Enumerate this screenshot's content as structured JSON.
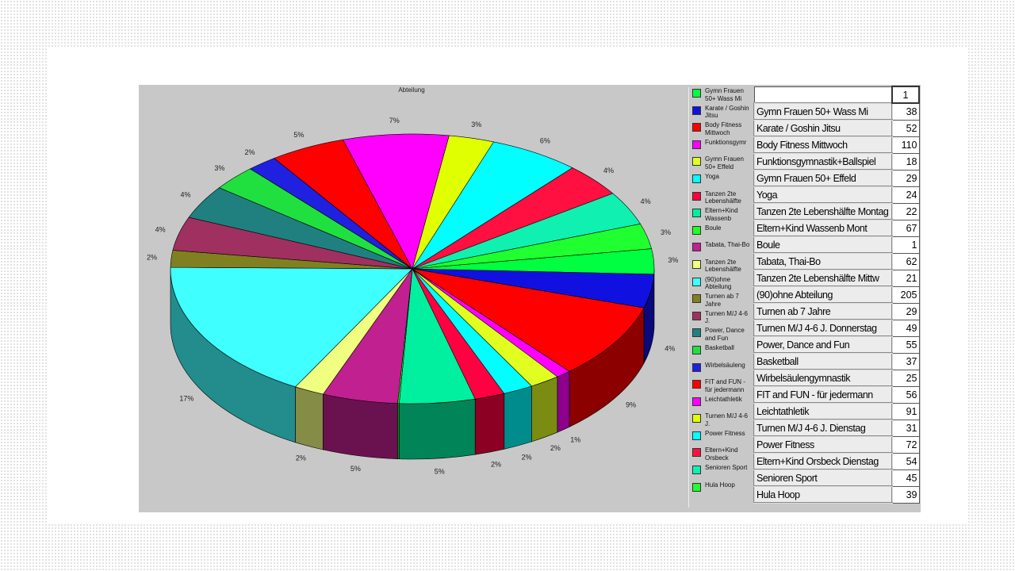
{
  "chart_data": {
    "type": "pie",
    "title": "Abteilung",
    "categories": [
      "Gymn Frauen 50+ Wass Mi",
      "Karate / Goshin Jitsu",
      "Body Fitness Mittwoch",
      "Funktionsgymr",
      "Gymn Frauen 50+ Effeld",
      "Yoga",
      "Tanzen 2te Lebenshälfte",
      "Eltern+Kind Wassenb",
      "Boule",
      "Tabata, Thai-Bo",
      "Tanzen 2te Lebenshälfte",
      "(90)ohne Abteilung",
      "Turnen ab 7 Jahre",
      "Turnen M/J 4-6 J.",
      "Power, Dance and Fun",
      "Basketball",
      "Wirbelsäuleng",
      "FIT and FUN - für jedermann",
      "Leichtathletik",
      "Turnen M/J 4-6 J.",
      "Power Fitness",
      "Eltern+Kind Orsbeck",
      "Senioren Sport",
      "Hula Hoop"
    ],
    "values": [
      3,
      4,
      9,
      1,
      2,
      2,
      2,
      5,
      0.1,
      5,
      2,
      17,
      2,
      4,
      4,
      3,
      2,
      5,
      7,
      3,
      6,
      4,
      4,
      3
    ],
    "value_labels": [
      "3%",
      "4%",
      "9%",
      "1%",
      "2%",
      "2%",
      "2%",
      "5%",
      null,
      "5%",
      "2%",
      "17%",
      "2%",
      "4%",
      "4%",
      "3%",
      "2%",
      "5%",
      "7%",
      "3%",
      "6%",
      "4%",
      "4%",
      "3%"
    ],
    "colors": [
      "#00ff40",
      "#1010e0",
      "#ff0000",
      "#ff00ff",
      "#e0ff20",
      "#00ffff",
      "#ff0040",
      "#00f0a0",
      "#20ff20",
      "#c02090",
      "#f0ff80",
      "#40ffff",
      "#808020",
      "#a03060",
      "#208080",
      "#20e040",
      "#2020e0",
      "#ff0000",
      "#ff00ff",
      "#e0ff00",
      "#00ffff",
      "#ff1040",
      "#10f0b0",
      "#20ff30"
    ],
    "legend": "right"
  },
  "table": {
    "header": "1",
    "rows": [
      [
        "Gymn Frauen 50+ Wass Mi",
        "38"
      ],
      [
        "Karate / Goshin Jitsu",
        "52"
      ],
      [
        "Body Fitness Mittwoch",
        "110"
      ],
      [
        "Funktionsgymnastik+Ballspiel",
        "18"
      ],
      [
        "Gymn Frauen 50+ Effeld",
        "29"
      ],
      [
        "Yoga",
        "24"
      ],
      [
        "Tanzen 2te Lebenshälfte Montag",
        "22"
      ],
      [
        "Eltern+Kind Wassenb Mont",
        "67"
      ],
      [
        "Boule",
        "1"
      ],
      [
        "Tabata, Thai-Bo",
        "62"
      ],
      [
        "Tanzen 2te Lebenshälfte Mittw",
        "21"
      ],
      [
        "(90)ohne Abteilung",
        "205"
      ],
      [
        "Turnen ab 7 Jahre",
        "29"
      ],
      [
        "Turnen M/J 4-6 J. Donnerstag",
        "49"
      ],
      [
        "Power, Dance and Fun",
        "55"
      ],
      [
        "Basketball",
        "37"
      ],
      [
        "Wirbelsäulengymnastik",
        "25"
      ],
      [
        "FIT and FUN - für jedermann",
        "56"
      ],
      [
        "Leichtathletik",
        "91"
      ],
      [
        "Turnen M/J 4-6 J. Dienstag",
        "31"
      ],
      [
        "Power Fitness",
        "72"
      ],
      [
        "Eltern+Kind Orsbeck Dienstag",
        "54"
      ],
      [
        "Senioren Sport",
        "45"
      ],
      [
        "Hula Hoop",
        "39"
      ]
    ]
  }
}
